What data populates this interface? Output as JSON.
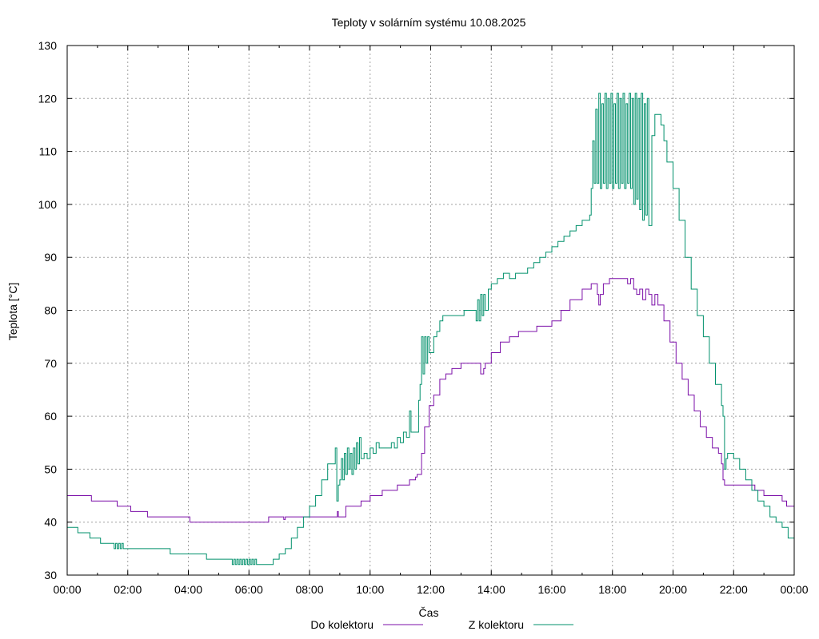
{
  "chart_data": {
    "type": "line",
    "title": "Teploty v solárním systému 10.08.2025",
    "xlabel": "Čas",
    "ylabel": "Teplota [°C]",
    "xlim": [
      0,
      24
    ],
    "ylim": [
      30,
      130
    ],
    "x_tick_labels": [
      "00:00",
      "02:00",
      "04:00",
      "06:00",
      "08:00",
      "10:00",
      "12:00",
      "14:00",
      "16:00",
      "18:00",
      "20:00",
      "22:00",
      "00:00"
    ],
    "y_ticks": [
      30,
      40,
      50,
      60,
      70,
      80,
      90,
      100,
      110,
      120,
      130
    ],
    "grid": true,
    "legend_position": "bottom-center",
    "series": [
      {
        "name": "Do kolektoru",
        "color": "#7b0fa8",
        "points": [
          [
            0,
            45
          ],
          [
            0.75,
            45
          ],
          [
            0.8,
            44
          ],
          [
            1.6,
            44
          ],
          [
            1.65,
            43
          ],
          [
            2.0,
            43
          ],
          [
            2.1,
            42
          ],
          [
            2.6,
            42
          ],
          [
            2.65,
            41
          ],
          [
            2.9,
            41
          ],
          [
            3.0,
            41
          ],
          [
            4.0,
            41
          ],
          [
            4.05,
            40
          ],
          [
            5.0,
            40
          ],
          [
            6.0,
            40
          ],
          [
            6.6,
            40
          ],
          [
            6.65,
            41
          ],
          [
            7.1,
            41
          ],
          [
            7.15,
            40.5
          ],
          [
            7.2,
            41
          ],
          [
            8.0,
            41
          ],
          [
            8.9,
            41
          ],
          [
            8.92,
            42
          ],
          [
            8.95,
            41
          ],
          [
            9.2,
            43
          ],
          [
            9.5,
            43
          ],
          [
            9.7,
            44
          ],
          [
            10.0,
            45
          ],
          [
            10.2,
            45
          ],
          [
            10.4,
            46
          ],
          [
            10.8,
            46
          ],
          [
            10.9,
            47
          ],
          [
            11.2,
            47
          ],
          [
            11.3,
            48
          ],
          [
            11.5,
            48.5
          ],
          [
            11.55,
            49
          ],
          [
            11.7,
            53
          ],
          [
            11.8,
            58
          ],
          [
            11.95,
            62
          ],
          [
            12.1,
            64
          ],
          [
            12.3,
            67
          ],
          [
            12.5,
            68
          ],
          [
            12.7,
            69
          ],
          [
            13.0,
            70
          ],
          [
            13.6,
            70
          ],
          [
            13.65,
            68
          ],
          [
            13.75,
            69
          ],
          [
            13.8,
            70
          ],
          [
            14.0,
            72
          ],
          [
            14.3,
            74
          ],
          [
            14.6,
            75
          ],
          [
            14.9,
            76
          ],
          [
            15.3,
            76
          ],
          [
            15.5,
            77
          ],
          [
            15.8,
            77
          ],
          [
            16.0,
            78
          ],
          [
            16.3,
            80
          ],
          [
            16.6,
            82
          ],
          [
            17.0,
            84
          ],
          [
            17.3,
            85
          ],
          [
            17.45,
            85
          ],
          [
            17.5,
            83
          ],
          [
            17.55,
            81
          ],
          [
            17.6,
            83
          ],
          [
            17.7,
            85
          ],
          [
            17.9,
            86
          ],
          [
            18.3,
            86
          ],
          [
            18.5,
            85
          ],
          [
            18.6,
            86
          ],
          [
            18.7,
            84
          ],
          [
            18.8,
            83
          ],
          [
            18.9,
            84
          ],
          [
            19.0,
            82
          ],
          [
            19.1,
            84
          ],
          [
            19.2,
            83
          ],
          [
            19.3,
            81
          ],
          [
            19.4,
            83
          ],
          [
            19.5,
            81
          ],
          [
            19.7,
            78
          ],
          [
            19.9,
            74
          ],
          [
            20.1,
            70
          ],
          [
            20.3,
            67
          ],
          [
            20.5,
            64
          ],
          [
            20.7,
            61
          ],
          [
            20.9,
            58
          ],
          [
            21.1,
            56
          ],
          [
            21.3,
            54
          ],
          [
            21.5,
            53
          ],
          [
            21.6,
            51
          ],
          [
            21.65,
            48
          ],
          [
            21.7,
            47
          ],
          [
            22.0,
            47
          ],
          [
            22.5,
            47
          ],
          [
            22.7,
            46
          ],
          [
            23.0,
            45
          ],
          [
            23.3,
            45
          ],
          [
            23.6,
            44
          ],
          [
            23.75,
            43
          ],
          [
            24.0,
            43
          ]
        ]
      },
      {
        "name": "Z kolektoru",
        "color": "#00906b",
        "points": [
          [
            0,
            39
          ],
          [
            0.3,
            39
          ],
          [
            0.35,
            38
          ],
          [
            0.75,
            37
          ],
          [
            1.1,
            36
          ],
          [
            1.5,
            36
          ],
          [
            1.55,
            35
          ],
          [
            1.6,
            36
          ],
          [
            1.65,
            35
          ],
          [
            1.7,
            36
          ],
          [
            1.75,
            35
          ],
          [
            1.8,
            36
          ],
          [
            1.85,
            35
          ],
          [
            2.0,
            35
          ],
          [
            2.5,
            35
          ],
          [
            3.0,
            35
          ],
          [
            3.4,
            34
          ],
          [
            4.0,
            34
          ],
          [
            4.5,
            34
          ],
          [
            4.6,
            33
          ],
          [
            5.0,
            33
          ],
          [
            5.4,
            33
          ],
          [
            5.45,
            32
          ],
          [
            5.5,
            33
          ],
          [
            5.55,
            32
          ],
          [
            5.6,
            33
          ],
          [
            5.65,
            32
          ],
          [
            5.7,
            33
          ],
          [
            5.75,
            32
          ],
          [
            5.8,
            33
          ],
          [
            5.85,
            32
          ],
          [
            5.9,
            33
          ],
          [
            5.95,
            32
          ],
          [
            6.0,
            33
          ],
          [
            6.05,
            32
          ],
          [
            6.1,
            33
          ],
          [
            6.15,
            32
          ],
          [
            6.2,
            33
          ],
          [
            6.25,
            32
          ],
          [
            6.6,
            32
          ],
          [
            6.8,
            33
          ],
          [
            7.0,
            34
          ],
          [
            7.2,
            35
          ],
          [
            7.4,
            37
          ],
          [
            7.6,
            39
          ],
          [
            7.8,
            41
          ],
          [
            8.0,
            43
          ],
          [
            8.2,
            45
          ],
          [
            8.4,
            48
          ],
          [
            8.6,
            51
          ],
          [
            8.85,
            54
          ],
          [
            8.9,
            44
          ],
          [
            8.95,
            47
          ],
          [
            9.0,
            48
          ],
          [
            9.05,
            52
          ],
          [
            9.1,
            48
          ],
          [
            9.15,
            53
          ],
          [
            9.2,
            49
          ],
          [
            9.25,
            54
          ],
          [
            9.3,
            50
          ],
          [
            9.35,
            53
          ],
          [
            9.4,
            49
          ],
          [
            9.45,
            54
          ],
          [
            9.5,
            50
          ],
          [
            9.55,
            55
          ],
          [
            9.6,
            51
          ],
          [
            9.65,
            56
          ],
          [
            9.7,
            52
          ],
          [
            9.8,
            53
          ],
          [
            9.9,
            52
          ],
          [
            10.0,
            54
          ],
          [
            10.1,
            53
          ],
          [
            10.2,
            55
          ],
          [
            10.3,
            54
          ],
          [
            10.5,
            54
          ],
          [
            10.7,
            55
          ],
          [
            10.8,
            54
          ],
          [
            10.9,
            56
          ],
          [
            11.0,
            55
          ],
          [
            11.1,
            57
          ],
          [
            11.2,
            56
          ],
          [
            11.3,
            61
          ],
          [
            11.35,
            57
          ],
          [
            11.5,
            57
          ],
          [
            11.6,
            63
          ],
          [
            11.65,
            66
          ],
          [
            11.7,
            75
          ],
          [
            11.75,
            68
          ],
          [
            11.8,
            75
          ],
          [
            11.85,
            70
          ],
          [
            11.9,
            75
          ],
          [
            11.95,
            72
          ],
          [
            12.1,
            75
          ],
          [
            12.2,
            76
          ],
          [
            12.3,
            78
          ],
          [
            12.4,
            79
          ],
          [
            12.6,
            79
          ],
          [
            13.0,
            79
          ],
          [
            13.1,
            80
          ],
          [
            13.3,
            80
          ],
          [
            13.45,
            80
          ],
          [
            13.5,
            78
          ],
          [
            13.55,
            82
          ],
          [
            13.6,
            78
          ],
          [
            13.65,
            83
          ],
          [
            13.7,
            79
          ],
          [
            13.75,
            83
          ],
          [
            13.8,
            80
          ],
          [
            13.9,
            84
          ],
          [
            14.0,
            85
          ],
          [
            14.2,
            86
          ],
          [
            14.4,
            87
          ],
          [
            14.6,
            86
          ],
          [
            14.8,
            87
          ],
          [
            15.0,
            87
          ],
          [
            15.2,
            88
          ],
          [
            15.4,
            89
          ],
          [
            15.6,
            90
          ],
          [
            15.8,
            91
          ],
          [
            16.0,
            92
          ],
          [
            16.2,
            93
          ],
          [
            16.4,
            94
          ],
          [
            16.6,
            95
          ],
          [
            16.8,
            96
          ],
          [
            17.0,
            97
          ],
          [
            17.2,
            97
          ],
          [
            17.25,
            98
          ],
          [
            17.3,
            103
          ],
          [
            17.35,
            112
          ],
          [
            17.4,
            104
          ],
          [
            17.45,
            118
          ],
          [
            17.5,
            104
          ],
          [
            17.55,
            121
          ],
          [
            17.6,
            103
          ],
          [
            17.65,
            119
          ],
          [
            17.7,
            104
          ],
          [
            17.75,
            121
          ],
          [
            17.8,
            103
          ],
          [
            17.85,
            120
          ],
          [
            17.9,
            104
          ],
          [
            17.95,
            121
          ],
          [
            18.0,
            103
          ],
          [
            18.05,
            119
          ],
          [
            18.1,
            104
          ],
          [
            18.15,
            121
          ],
          [
            18.2,
            103
          ],
          [
            18.25,
            120
          ],
          [
            18.3,
            104
          ],
          [
            18.35,
            121
          ],
          [
            18.4,
            103
          ],
          [
            18.45,
            119
          ],
          [
            18.5,
            104
          ],
          [
            18.55,
            121
          ],
          [
            18.6,
            103
          ],
          [
            18.65,
            120
          ],
          [
            18.7,
            100
          ],
          [
            18.75,
            121
          ],
          [
            18.8,
            101
          ],
          [
            18.85,
            120
          ],
          [
            18.9,
            99
          ],
          [
            18.95,
            121
          ],
          [
            19.0,
            97
          ],
          [
            19.05,
            119
          ],
          [
            19.1,
            98
          ],
          [
            19.15,
            120
          ],
          [
            19.2,
            96
          ],
          [
            19.3,
            113
          ],
          [
            19.4,
            117
          ],
          [
            19.5,
            117
          ],
          [
            19.6,
            115
          ],
          [
            19.7,
            112
          ],
          [
            19.8,
            108
          ],
          [
            20.0,
            103
          ],
          [
            20.2,
            97
          ],
          [
            20.4,
            90
          ],
          [
            20.6,
            84
          ],
          [
            20.8,
            79
          ],
          [
            21.0,
            75
          ],
          [
            21.2,
            70
          ],
          [
            21.4,
            66
          ],
          [
            21.6,
            62
          ],
          [
            21.65,
            60
          ],
          [
            21.7,
            50
          ],
          [
            21.75,
            52
          ],
          [
            21.8,
            53
          ],
          [
            22.0,
            52
          ],
          [
            22.2,
            50
          ],
          [
            22.4,
            48
          ],
          [
            22.6,
            46
          ],
          [
            22.8,
            44
          ],
          [
            23.0,
            43
          ],
          [
            23.2,
            41
          ],
          [
            23.4,
            40
          ],
          [
            23.6,
            39
          ],
          [
            23.8,
            37
          ],
          [
            24.0,
            36
          ]
        ]
      }
    ]
  }
}
